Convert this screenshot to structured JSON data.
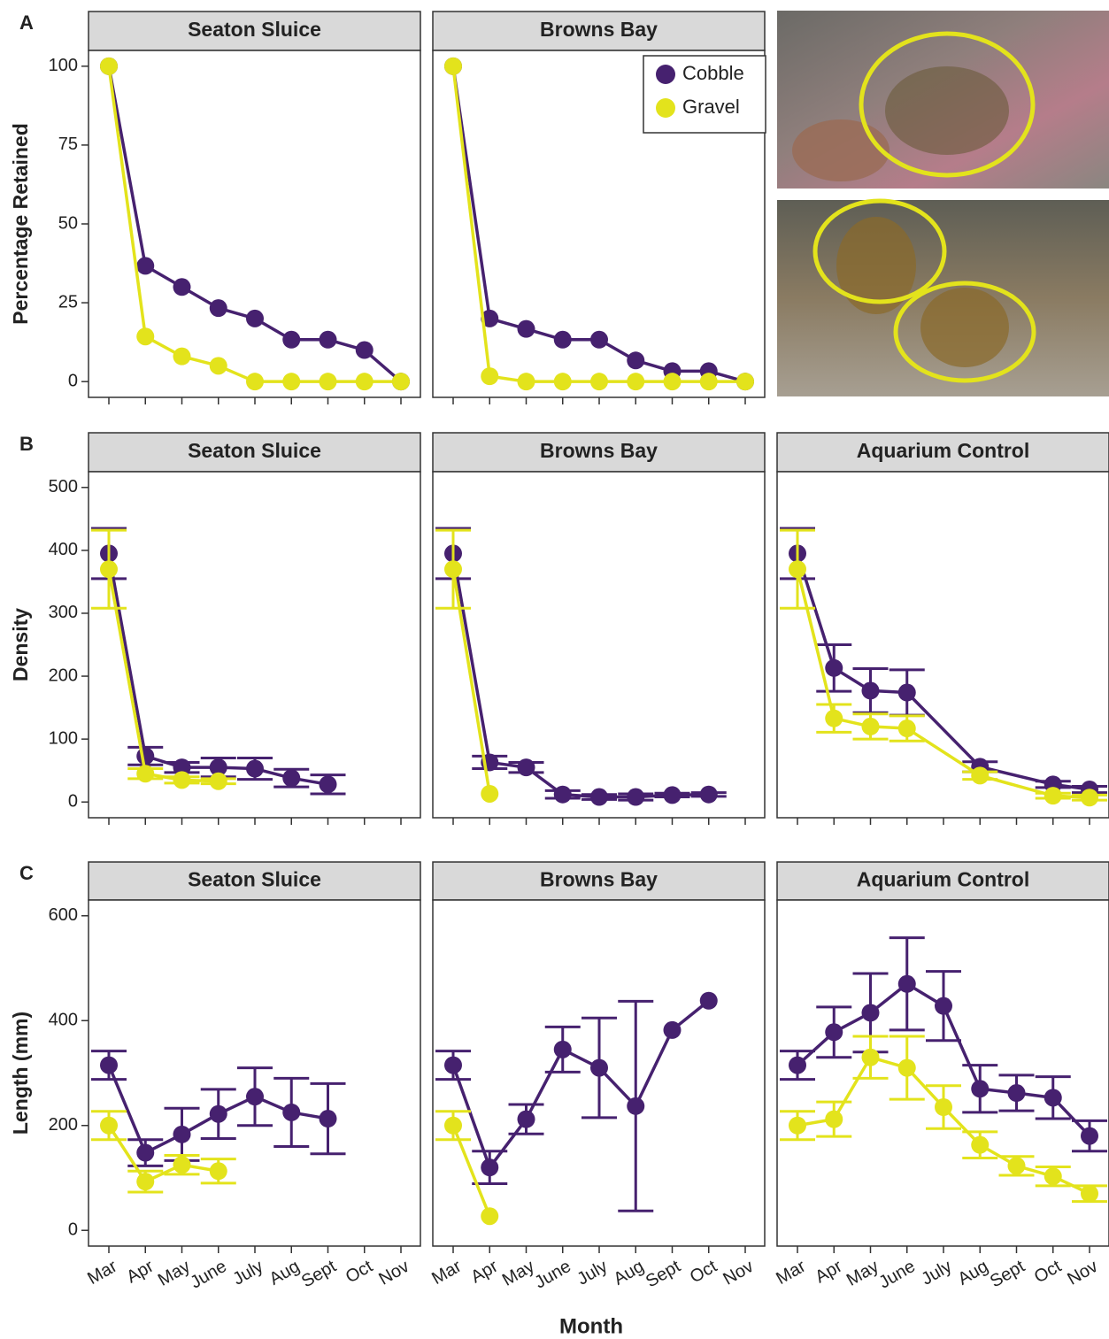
{
  "chart_data": {
    "type": "line",
    "categories": [
      "Mar",
      "Apr",
      "May",
      "June",
      "July",
      "Aug",
      "Sept",
      "Oct",
      "Nov"
    ],
    "xlabel": "Month",
    "rows": [
      {
        "panel_label": "A",
        "ylabel": "Percentage Retained",
        "ylim": [
          -5,
          105
        ],
        "yticks": [
          0,
          25,
          50,
          75,
          100
        ],
        "facets": [
          {
            "title": "Seaton Sluice",
            "series": [
              {
                "name": "Cobble",
                "color": "#46216f",
                "x": [
                  "Mar",
                  "Apr",
                  "May",
                  "June",
                  "July",
                  "Aug",
                  "Sept",
                  "Oct",
                  "Nov"
                ],
                "values": [
                  100,
                  36.7,
                  30,
                  23.3,
                  20,
                  13.3,
                  13.3,
                  10,
                  0
                ]
              },
              {
                "name": "Gravel",
                "color": "#e3e31c",
                "x": [
                  "Mar",
                  "Apr",
                  "May",
                  "June",
                  "July",
                  "Aug",
                  "Sept",
                  "Oct",
                  "Nov"
                ],
                "values": [
                  100,
                  14.3,
                  8,
                  5,
                  0,
                  0,
                  0,
                  0,
                  0
                ]
              }
            ]
          },
          {
            "title": "Browns Bay",
            "series": [
              {
                "name": "Cobble",
                "color": "#46216f",
                "x": [
                  "Mar",
                  "Apr",
                  "May",
                  "June",
                  "July",
                  "Aug",
                  "Sept",
                  "Oct",
                  "Nov"
                ],
                "values": [
                  100,
                  20,
                  16.7,
                  13.3,
                  13.3,
                  6.7,
                  3.3,
                  3.3,
                  0
                ]
              },
              {
                "name": "Gravel",
                "color": "#e3e31c",
                "x": [
                  "Mar",
                  "Apr",
                  "May",
                  "June",
                  "July",
                  "Aug",
                  "Sept",
                  "Oct",
                  "Nov"
                ],
                "values": [
                  100,
                  1.7,
                  0,
                  0,
                  0,
                  0,
                  0,
                  0,
                  0
                ]
              }
            ]
          }
        ]
      },
      {
        "panel_label": "B",
        "ylabel": "Density",
        "ylim": [
          -25,
          525
        ],
        "yticks": [
          0,
          100,
          200,
          300,
          400,
          500
        ],
        "facets": [
          {
            "title": "Seaton Sluice",
            "series": [
              {
                "name": "Cobble",
                "color": "#46216f",
                "x": [
                  "Mar",
                  "Apr",
                  "May",
                  "June",
                  "July",
                  "Aug",
                  "Sept"
                ],
                "values": [
                  395,
                  73,
                  55,
                  55,
                  53,
                  38,
                  28
                ],
                "errors": [
                  40,
                  14,
                  8,
                  15,
                  17,
                  14,
                  15
                ]
              },
              {
                "name": "Gravel",
                "color": "#e3e31c",
                "x": [
                  "Mar",
                  "Apr",
                  "May",
                  "June"
                ],
                "values": [
                  370,
                  45,
                  35,
                  33
                ],
                "errors": [
                  62,
                  8,
                  5,
                  4
                ]
              }
            ]
          },
          {
            "title": "Browns Bay",
            "series": [
              {
                "name": "Cobble",
                "color": "#46216f",
                "x": [
                  "Mar",
                  "Apr",
                  "May",
                  "June",
                  "July",
                  "Aug",
                  "Sept",
                  "Oct"
                ],
                "values": [
                  395,
                  63,
                  55,
                  12,
                  8,
                  8,
                  11,
                  12
                ],
                "errors": [
                  40,
                  10,
                  8,
                  6,
                  4,
                  5,
                  3,
                  3
                ]
              },
              {
                "name": "Gravel",
                "color": "#e3e31c",
                "x": [
                  "Mar",
                  "Apr"
                ],
                "values": [
                  370,
                  13
                ],
                "errors": [
                  62,
                  0
                ]
              }
            ]
          },
          {
            "title": "Aquarium Control",
            "series": [
              {
                "name": "Cobble",
                "color": "#46216f",
                "x": [
                  "Mar",
                  "Apr",
                  "May",
                  "June",
                  "Aug",
                  "Oct",
                  "Nov"
                ],
                "values": [
                  395,
                  213,
                  177,
                  174,
                  56,
                  28,
                  20
                ],
                "errors": [
                  40,
                  37,
                  35,
                  36,
                  8,
                  5,
                  5
                ]
              },
              {
                "name": "Gravel",
                "color": "#e3e31c",
                "x": [
                  "Mar",
                  "Apr",
                  "May",
                  "June",
                  "Aug",
                  "Oct",
                  "Nov"
                ],
                "values": [
                  370,
                  133,
                  120,
                  117,
                  42,
                  10,
                  7
                ],
                "errors": [
                  62,
                  22,
                  20,
                  20,
                  6,
                  4,
                  4
                ]
              }
            ]
          }
        ]
      },
      {
        "panel_label": "C",
        "ylabel": "Length (mm)",
        "ylim": [
          -30,
          630
        ],
        "yticks": [
          0,
          200,
          400,
          600
        ],
        "facets": [
          {
            "title": "Seaton Sluice",
            "series": [
              {
                "name": "Cobble",
                "color": "#46216f",
                "x": [
                  "Mar",
                  "Apr",
                  "May",
                  "June",
                  "July",
                  "Aug",
                  "Sept"
                ],
                "values": [
                  315,
                  148,
                  183,
                  222,
                  255,
                  225,
                  213
                ],
                "errors": [
                  27,
                  25,
                  50,
                  47,
                  55,
                  65,
                  67
                ]
              },
              {
                "name": "Gravel",
                "color": "#e3e31c",
                "x": [
                  "Mar",
                  "Apr",
                  "May",
                  "June"
                ],
                "values": [
                  200,
                  93,
                  125,
                  113
                ],
                "errors": [
                  27,
                  20,
                  18,
                  23
                ]
              }
            ]
          },
          {
            "title": "Browns Bay",
            "series": [
              {
                "name": "Cobble",
                "color": "#46216f",
                "x": [
                  "Mar",
                  "Apr",
                  "May",
                  "June",
                  "July",
                  "Aug",
                  "Sept",
                  "Oct"
                ],
                "values": [
                  315,
                  120,
                  212,
                  345,
                  310,
                  237,
                  382,
                  438
                ],
                "errors": [
                  27,
                  31,
                  28,
                  43,
                  95,
                  200,
                  0,
                  0
                ]
              },
              {
                "name": "Gravel",
                "color": "#e3e31c",
                "x": [
                  "Mar",
                  "Apr"
                ],
                "values": [
                  200,
                  27
                ],
                "errors": [
                  27,
                  0
                ]
              }
            ]
          },
          {
            "title": "Aquarium Control",
            "series": [
              {
                "name": "Cobble",
                "color": "#46216f",
                "x": [
                  "Mar",
                  "Apr",
                  "May",
                  "June",
                  "July",
                  "Aug",
                  "Sept",
                  "Oct",
                  "Nov"
                ],
                "values": [
                  315,
                  378,
                  415,
                  470,
                  428,
                  270,
                  262,
                  253,
                  180
                ],
                "errors": [
                  27,
                  48,
                  75,
                  88,
                  66,
                  45,
                  34,
                  40,
                  29
                ]
              },
              {
                "name": "Gravel",
                "color": "#e3e31c",
                "x": [
                  "Mar",
                  "Apr",
                  "May",
                  "June",
                  "July",
                  "Aug",
                  "Sept",
                  "Oct",
                  "Nov"
                ],
                "values": [
                  200,
                  212,
                  330,
                  310,
                  235,
                  163,
                  123,
                  103,
                  70
                ],
                "errors": [
                  27,
                  33,
                  40,
                  60,
                  41,
                  25,
                  18,
                  18,
                  15
                ]
              }
            ]
          }
        ]
      }
    ]
  }
}
